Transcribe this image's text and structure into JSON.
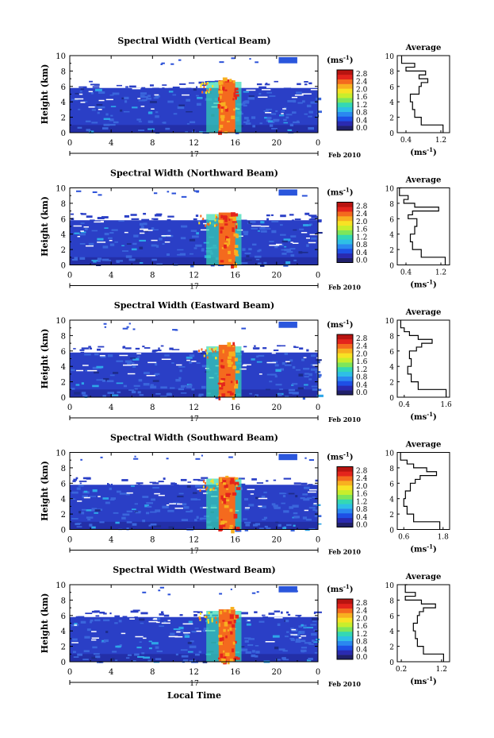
{
  "figure": {
    "x_axis_label": "Local Time",
    "date_day": "17",
    "date_month_year": "Feb 2010",
    "unit_label": "(ms",
    "unit_exp": "-1",
    "profile_title": "Average",
    "main_ylabel": "Height (km)"
  },
  "colors": {
    "background_map": "#2a3fc6",
    "colorbar": [
      "#20206a",
      "#2a2ab0",
      "#1e50e6",
      "#2a88f0",
      "#2ebfe6",
      "#34d8b4",
      "#7ee65a",
      "#c8ee2c",
      "#f8e224",
      "#f8b020",
      "#f46a1e",
      "#e4241c",
      "#b81410"
    ]
  },
  "chart_data": [
    {
      "type": "heatmap",
      "title": "Spectral Width (Vertical Beam)",
      "x_ticks": [
        "0",
        "4",
        "8",
        "12",
        "16",
        "20",
        "0"
      ],
      "x_range": [
        0,
        24
      ],
      "y_ticks": [
        "0",
        "2",
        "4",
        "6",
        "8",
        "10"
      ],
      "y_range": [
        0,
        10
      ],
      "colorbar_ticks": [
        "0.0",
        "0.4",
        "0.8",
        "1.2",
        "1.6",
        "2.0",
        "2.4",
        "2.8"
      ],
      "colorbar_range": [
        0,
        2.8
      ],
      "profile": {
        "x_ticks": [
          "0.4",
          "1.2"
        ],
        "x_range": [
          0.2,
          1.4
        ],
        "heights": [
          0,
          1,
          2,
          3,
          4,
          5,
          6,
          6.5,
          7,
          7.5,
          8,
          8.5,
          9,
          10
        ],
        "values": [
          1.25,
          0.75,
          0.6,
          0.55,
          0.5,
          0.7,
          0.75,
          0.9,
          0.7,
          0.85,
          0.4,
          0.6,
          0.3,
          0.3
        ]
      }
    },
    {
      "type": "heatmap",
      "title": "Spectral Width (Northward Beam)",
      "x_ticks": [
        "0",
        "4",
        "8",
        "12",
        "16",
        "20",
        "0"
      ],
      "x_range": [
        0,
        24
      ],
      "y_ticks": [
        "0",
        "2",
        "4",
        "6",
        "8",
        "10"
      ],
      "y_range": [
        0,
        10
      ],
      "colorbar_ticks": [
        "0.0",
        "0.4",
        "0.8",
        "1.2",
        "1.6",
        "2.0",
        "2.4",
        "2.8"
      ],
      "colorbar_range": [
        0,
        2.8
      ],
      "profile": {
        "x_ticks": [
          "0.4",
          "1.2"
        ],
        "x_range": [
          0.2,
          1.4
        ],
        "heights": [
          0,
          1,
          2,
          3,
          4,
          5,
          6,
          6.5,
          7,
          7.5,
          8,
          8.5,
          9,
          10
        ],
        "values": [
          1.3,
          0.75,
          0.55,
          0.5,
          0.6,
          0.65,
          0.45,
          0.55,
          1.15,
          0.6,
          0.35,
          0.45,
          0.25,
          0.3
        ]
      }
    },
    {
      "type": "heatmap",
      "title": "Spectral Width (Eastward Beam)",
      "x_ticks": [
        "0",
        "4",
        "8",
        "12",
        "16",
        "20",
        "0"
      ],
      "x_range": [
        0,
        24
      ],
      "y_ticks": [
        "0",
        "2",
        "4",
        "6",
        "8",
        "10"
      ],
      "y_range": [
        0,
        10
      ],
      "colorbar_ticks": [
        "0.0",
        "0.4",
        "0.8",
        "1.2",
        "1.6",
        "2.0",
        "2.4",
        "2.8"
      ],
      "colorbar_range": [
        0,
        2.8
      ],
      "profile": {
        "x_ticks": [
          "0.4",
          "1.6"
        ],
        "x_range": [
          0.2,
          1.7
        ],
        "heights": [
          0,
          1,
          2,
          3,
          4,
          5,
          6,
          6.5,
          7,
          7.5,
          8,
          8.5,
          9,
          10
        ],
        "values": [
          1.6,
          0.8,
          0.6,
          0.5,
          0.6,
          0.55,
          0.75,
          0.9,
          1.2,
          0.8,
          0.55,
          0.4,
          0.3,
          0.3
        ]
      }
    },
    {
      "type": "heatmap",
      "title": "Spectral Width (Southward Beam)",
      "x_ticks": [
        "0",
        "4",
        "8",
        "12",
        "16",
        "20",
        "0"
      ],
      "x_range": [
        0,
        24
      ],
      "y_ticks": [
        "0",
        "2",
        "4",
        "6",
        "8",
        "10"
      ],
      "y_range": [
        0,
        10
      ],
      "colorbar_ticks": [
        "0.0",
        "0.4",
        "0.8",
        "1.2",
        "1.6",
        "2.0",
        "2.4",
        "2.8"
      ],
      "colorbar_range": [
        0,
        2.8
      ],
      "profile": {
        "x_ticks": [
          "0.6",
          "1.8"
        ],
        "x_range": [
          0.4,
          2.0
        ],
        "heights": [
          0,
          1,
          2,
          3,
          4,
          5,
          6,
          6.5,
          7,
          7.5,
          8,
          8.5,
          9,
          10
        ],
        "values": [
          1.7,
          0.9,
          0.7,
          0.6,
          0.65,
          0.8,
          0.95,
          1.1,
          1.6,
          1.3,
          0.9,
          0.7,
          0.5,
          0.5
        ]
      }
    },
    {
      "type": "heatmap",
      "title": "Spectral Width (Westward Beam)",
      "x_ticks": [
        "0",
        "4",
        "8",
        "12",
        "16",
        "20",
        "0"
      ],
      "x_range": [
        0,
        24
      ],
      "y_ticks": [
        "0",
        "2",
        "4",
        "6",
        "8",
        "10"
      ],
      "y_range": [
        0,
        10
      ],
      "colorbar_ticks": [
        "0.0",
        "0.4",
        "0.8",
        "1.2",
        "1.6",
        "2.0",
        "2.4",
        "2.8"
      ],
      "colorbar_range": [
        0,
        2.8
      ],
      "profile": {
        "x_ticks": [
          "0.2",
          "1.2"
        ],
        "x_range": [
          0.1,
          1.4
        ],
        "heights": [
          0,
          1,
          2,
          3,
          4,
          5,
          6,
          6.5,
          7,
          7.5,
          8,
          8.5,
          9,
          10
        ],
        "values": [
          1.25,
          0.75,
          0.6,
          0.55,
          0.5,
          0.6,
          0.65,
          0.75,
          1.05,
          0.7,
          0.3,
          0.55,
          0.3,
          0.35
        ]
      }
    }
  ]
}
